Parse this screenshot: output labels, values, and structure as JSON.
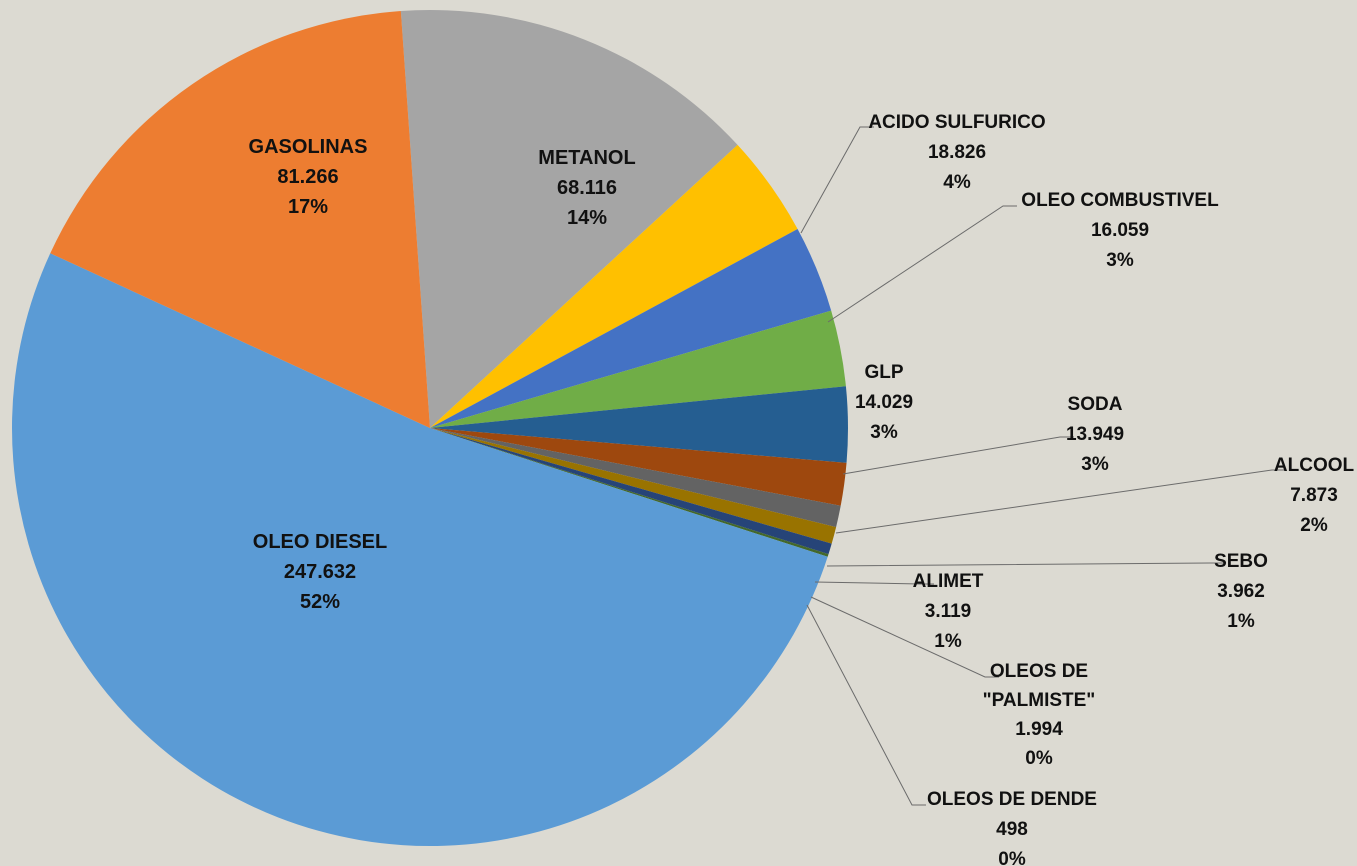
{
  "chart_data": {
    "type": "pie",
    "title": "",
    "start_angle_deg": -4,
    "direction": "clockwise",
    "slices": [
      {
        "name": "METANOL",
        "value": 68116,
        "value_label": "68.116",
        "percent_label": "14%",
        "color": "#a5a5a5"
      },
      {
        "name": "ACIDO SULFURICO",
        "value": 18826,
        "value_label": "18.826",
        "percent_label": "4%",
        "color": "#ffc000"
      },
      {
        "name": "OLEO COMBUSTIVEL",
        "value": 16059,
        "value_label": "16.059",
        "percent_label": "3%",
        "color": "#4472c4"
      },
      {
        "name": "GLP",
        "value": 14029,
        "value_label": "14.029",
        "percent_label": "3%",
        "color": "#70ad47"
      },
      {
        "name": "SODA",
        "value": 13949,
        "value_label": "13.949",
        "percent_label": "3%",
        "color": "#255e91"
      },
      {
        "name": "ALCOOL",
        "value": 7873,
        "value_label": "7.873",
        "percent_label": "2%",
        "color": "#9e480e"
      },
      {
        "name": "SEBO",
        "value": 3962,
        "value_label": "3.962",
        "percent_label": "1%",
        "color": "#636363"
      },
      {
        "name": "ALIMET",
        "value": 3119,
        "value_label": "3.119",
        "percent_label": "1%",
        "color": "#997300"
      },
      {
        "name": "OLEOS DE \"PALMISTE\"",
        "name_lines": [
          "OLEOS DE",
          "\"PALMISTE\""
        ],
        "value": 1994,
        "value_label": "1.994",
        "percent_label": "0%",
        "color": "#264478"
      },
      {
        "name": "OLEOS DE DENDE",
        "value": 498,
        "value_label": "498",
        "percent_label": "0%",
        "color": "#43682b"
      },
      {
        "name": "OLEO DIESEL",
        "value": 247632,
        "value_label": "247.632",
        "percent_label": "52%",
        "color": "#5b9bd5"
      },
      {
        "name": "GASOLINAS",
        "value": 81266,
        "value_label": "81.266",
        "percent_label": "17%",
        "color": "#ed7d31"
      }
    ]
  }
}
